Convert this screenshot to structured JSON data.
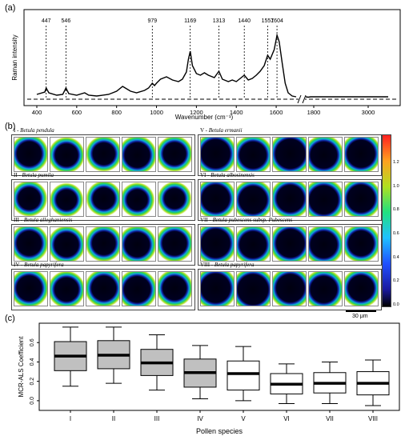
{
  "panels": {
    "a": "(a)",
    "b": "(b)",
    "c": "(c)"
  },
  "chart_data": [
    {
      "type": "line",
      "panel": "(a)",
      "xlabel": "Wavenumber (cm⁻¹)",
      "ylabel": "Raman intensity",
      "xticks_low": [
        400,
        600,
        800,
        1000,
        1200,
        1400,
        1600
      ],
      "xticks_high": [
        1800,
        3000
      ],
      "peaks": [
        447,
        546,
        979,
        1169,
        1313,
        1440,
        1557,
        1604
      ],
      "x": [
        400,
        440,
        447,
        460,
        500,
        530,
        546,
        560,
        600,
        640,
        660,
        700,
        760,
        800,
        830,
        850,
        870,
        900,
        940,
        960,
        979,
        990,
        1000,
        1020,
        1050,
        1080,
        1110,
        1130,
        1150,
        1160,
        1169,
        1180,
        1200,
        1220,
        1240,
        1260,
        1290,
        1313,
        1330,
        1360,
        1380,
        1400,
        1420,
        1440,
        1460,
        1480,
        1500,
        1520,
        1540,
        1557,
        1570,
        1590,
        1604,
        1615,
        1630,
        1645,
        1660,
        1680,
        1700
      ],
      "y": [
        0.06,
        0.09,
        0.14,
        0.08,
        0.05,
        0.06,
        0.14,
        0.07,
        0.05,
        0.08,
        0.05,
        0.04,
        0.06,
        0.1,
        0.16,
        0.13,
        0.1,
        0.08,
        0.11,
        0.14,
        0.2,
        0.17,
        0.2,
        0.25,
        0.28,
        0.24,
        0.22,
        0.25,
        0.34,
        0.5,
        0.6,
        0.42,
        0.32,
        0.3,
        0.33,
        0.3,
        0.27,
        0.35,
        0.25,
        0.22,
        0.24,
        0.22,
        0.26,
        0.3,
        0.24,
        0.26,
        0.3,
        0.35,
        0.42,
        0.55,
        0.5,
        0.62,
        0.8,
        0.72,
        0.45,
        0.2,
        0.08,
        0.04,
        0.03
      ],
      "x_high": [
        1760,
        1800,
        1840,
        1900,
        2000,
        2200,
        2500,
        2800,
        3000,
        3100
      ],
      "y_high": [
        0.03,
        0.025,
        0.03,
        0.03,
        0.03,
        0.03,
        0.03,
        0.03,
        0.03,
        0.03
      ]
    },
    {
      "type": "heatmap",
      "panel": "(b)",
      "colorbar_ticks": [
        "0.0",
        "0.2",
        "0.4",
        "0.6",
        "0.8",
        "1.0",
        "1.2"
      ],
      "scalebar": "30 μm",
      "groups": [
        {
          "roman": "I",
          "name": "Betula pendula",
          "cells": 5
        },
        {
          "roman": "II",
          "name": "Betula pumila",
          "cells": 5
        },
        {
          "roman": "III",
          "name": "Betula alleghaniensis",
          "cells": 5
        },
        {
          "roman": "IV",
          "name": "Betula papyrifera",
          "cells": 5
        },
        {
          "roman": "V",
          "name": "Betula ermanii",
          "cells": 5
        },
        {
          "roman": "VI",
          "name": "Betula albosinensis",
          "cells": 5
        },
        {
          "roman": "VII",
          "name": "Betula pubescens subsp. Pubescens",
          "cells": 5
        },
        {
          "roman": "VIII",
          "name": "Betula papyrifera",
          "cells": 5
        }
      ]
    },
    {
      "type": "box",
      "panel": "(c)",
      "xlabel": "Pollen species",
      "ylabel": "MCR-ALS Coefficient",
      "ylim": [
        -0.1,
        0.8
      ],
      "yticks": [
        0.0,
        0.2,
        0.4,
        0.6
      ],
      "categories": [
        "I",
        "II",
        "III",
        "IV",
        "V",
        "VI",
        "VII",
        "VIII"
      ],
      "fill": [
        "gray",
        "gray",
        "gray",
        "gray",
        "white",
        "white",
        "white",
        "white"
      ],
      "min": [
        0.15,
        0.18,
        0.11,
        0.02,
        0.0,
        -0.03,
        -0.03,
        -0.05
      ],
      "q1": [
        0.31,
        0.33,
        0.26,
        0.14,
        0.11,
        0.07,
        0.08,
        0.06
      ],
      "median": [
        0.46,
        0.47,
        0.39,
        0.29,
        0.28,
        0.17,
        0.18,
        0.18
      ],
      "q3": [
        0.61,
        0.62,
        0.53,
        0.43,
        0.41,
        0.28,
        0.29,
        0.3
      ],
      "max": [
        0.76,
        0.76,
        0.68,
        0.57,
        0.56,
        0.38,
        0.4,
        0.42
      ]
    }
  ]
}
